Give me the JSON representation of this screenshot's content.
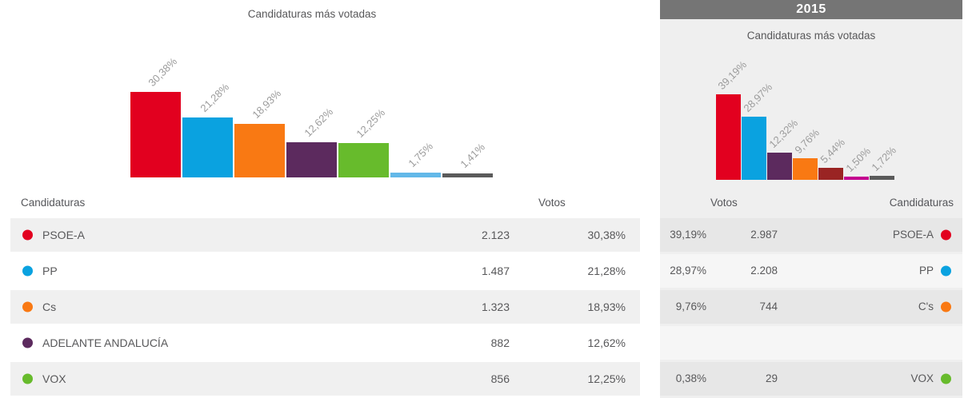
{
  "right_year": "2015",
  "chart_data": [
    {
      "type": "bar",
      "title": "Candidaturas más votadas",
      "categories": [
        "PSOE-A",
        "PP",
        "Cs",
        "ADELANTE ANDALUCÍA",
        "VOX",
        "",
        ""
      ],
      "values": [
        30.38,
        21.28,
        18.93,
        12.62,
        12.25,
        1.75,
        1.41
      ],
      "labels": [
        "30,38%",
        "21,28%",
        "18,93%",
        "12,62%",
        "12,25%",
        "1,75%",
        "1,41%"
      ],
      "colors": [
        "#e2001f",
        "#0aa2e0",
        "#f97913",
        "#5c2a5e",
        "#67bb2c",
        "#62b8e8",
        "#5a5a5a"
      ],
      "ylim": [
        0,
        30.38
      ],
      "grid": false,
      "legend": "none"
    },
    {
      "type": "bar",
      "title": "Candidaturas más votadas",
      "year": "2015",
      "categories": [
        "PSOE-A",
        "PP",
        "",
        "C's",
        "",
        "",
        ""
      ],
      "values": [
        39.19,
        28.97,
        12.32,
        9.76,
        5.44,
        1.5,
        1.72
      ],
      "labels": [
        "39,19%",
        "28,97%",
        "12,32%",
        "9,76%",
        "5,44%",
        "1,50%",
        "1,72%"
      ],
      "colors": [
        "#e2001f",
        "#0aa2e0",
        "#5c2a5e",
        "#f97913",
        "#9a2423",
        "#c4008f",
        "#5a5a5a"
      ],
      "ylim": [
        0,
        39.19
      ],
      "grid": false,
      "legend": "none"
    }
  ],
  "left_table": {
    "header": {
      "candidaturas": "Candidaturas",
      "votos": "Votos"
    },
    "rows": [
      {
        "party": "PSOE-A",
        "color": "#e2001f",
        "votes": "2.123",
        "percent": "30,38%"
      },
      {
        "party": "PP",
        "color": "#0aa2e0",
        "votes": "1.487",
        "percent": "21,28%"
      },
      {
        "party": "Cs",
        "color": "#f97913",
        "votes": "1.323",
        "percent": "18,93%"
      },
      {
        "party": "ADELANTE ANDALUCÍA",
        "color": "#5c2a5e",
        "votes": "882",
        "percent": "12,62%"
      },
      {
        "party": "VOX",
        "color": "#67bb2c",
        "votes": "856",
        "percent": "12,25%"
      }
    ]
  },
  "right_table": {
    "header": {
      "votos": "Votos",
      "candidaturas": "Candidaturas"
    },
    "rows": [
      {
        "percent": "39,19%",
        "votes": "2.987",
        "party": "PSOE-A",
        "color": "#e2001f"
      },
      {
        "percent": "28,97%",
        "votes": "2.208",
        "party": "PP",
        "color": "#0aa2e0"
      },
      {
        "percent": "9,76%",
        "votes": "744",
        "party": "C's",
        "color": "#f97913"
      },
      {},
      {
        "percent": "0,38%",
        "votes": "29",
        "party": "VOX",
        "color": "#67bb2c"
      }
    ]
  },
  "ui_colors": {
    "year_bar_bg": "#757575",
    "right_panel_bg": "#efefef",
    "row_shade_left": "#f0f0f0",
    "row_shade_right": "#e7e7e7",
    "row_light_right": "#f6f6f6",
    "text": "#58585a",
    "bar_label": "#9c9c9c"
  }
}
